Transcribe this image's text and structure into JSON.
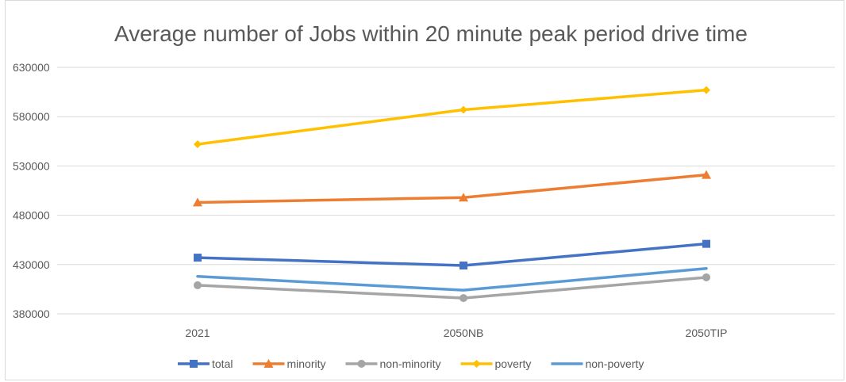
{
  "chart_data": {
    "type": "line",
    "title": "Average number of Jobs within 20 minute peak period drive time",
    "xlabel": "",
    "ylabel": "",
    "categories": [
      "2021",
      "2050NB",
      "2050TIP"
    ],
    "ylim": [
      380000,
      630000
    ],
    "yticks": [
      380000,
      430000,
      480000,
      530000,
      580000,
      630000
    ],
    "grid": true,
    "legend_position": "bottom",
    "series": [
      {
        "name": "total",
        "color": "#4472c4",
        "marker": "square",
        "values": [
          437000,
          429000,
          451000
        ]
      },
      {
        "name": "minority",
        "color": "#ed7d31",
        "marker": "triangle",
        "values": [
          493000,
          498000,
          521000
        ]
      },
      {
        "name": "non-minority",
        "color": "#a5a5a5",
        "marker": "circle",
        "values": [
          409000,
          396000,
          417000
        ]
      },
      {
        "name": "poverty",
        "color": "#ffc000",
        "marker": "diamond",
        "values": [
          552000,
          587000,
          607000
        ]
      },
      {
        "name": "non-poverty",
        "color": "#5b9bd5",
        "marker": "none",
        "values": [
          418000,
          404000,
          426000
        ]
      }
    ]
  }
}
